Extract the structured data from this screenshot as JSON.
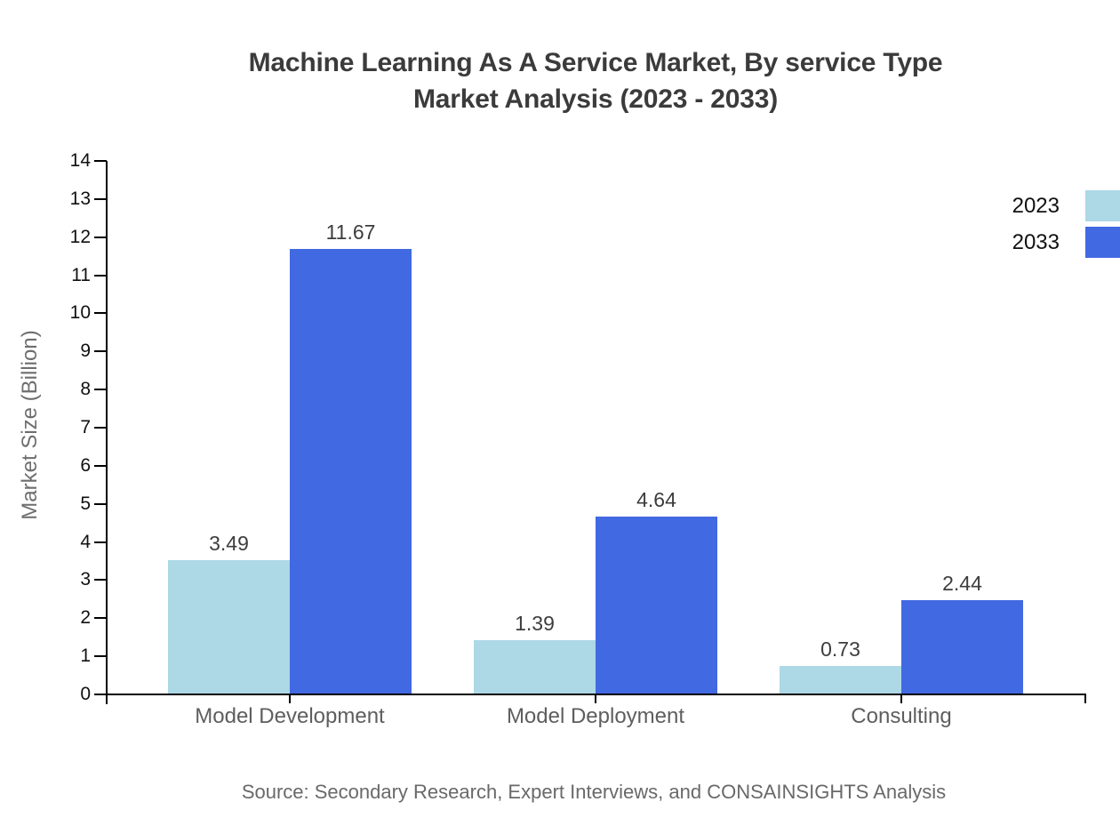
{
  "header": {
    "title_line1": "Machine Learning As A Service Market, By service Type",
    "title_line2": "Market Analysis (2023 - 2033)"
  },
  "chart_data": {
    "type": "bar",
    "title": "Machine Learning As A Service Market, By service Type Market Analysis (2023 - 2033)",
    "categories": [
      "Model Development",
      "Model Deployment",
      "Consulting"
    ],
    "series": [
      {
        "name": "2023",
        "color": "#ADD8E6",
        "values": [
          3.49,
          1.39,
          0.73
        ]
      },
      {
        "name": "2033",
        "color": "#4169E1",
        "values": [
          11.67,
          4.64,
          2.44
        ]
      }
    ],
    "value_labels": [
      [
        "3.49",
        "1.39",
        "0.73"
      ],
      [
        "11.67",
        "4.64",
        "2.44"
      ]
    ],
    "xlabel": "",
    "ylabel": "Market Size (Billion)",
    "ylim": [
      0,
      14
    ],
    "ytick_step": 1,
    "yticks": [
      0,
      1,
      2,
      3,
      4,
      5,
      6,
      7,
      8,
      9,
      10,
      11,
      12,
      13,
      14
    ],
    "grid": false,
    "legend_position": "top-right"
  },
  "footer": {
    "source": "Source: Secondary Research, Expert Interviews, and CONSAINSIGHTS Analysis"
  },
  "colors": {
    "series_2023": "#ADD8E6",
    "series_2033": "#4169E1",
    "axis": "#000000",
    "title_text": "#3b3b3b",
    "muted_text": "#6e6e6e"
  }
}
